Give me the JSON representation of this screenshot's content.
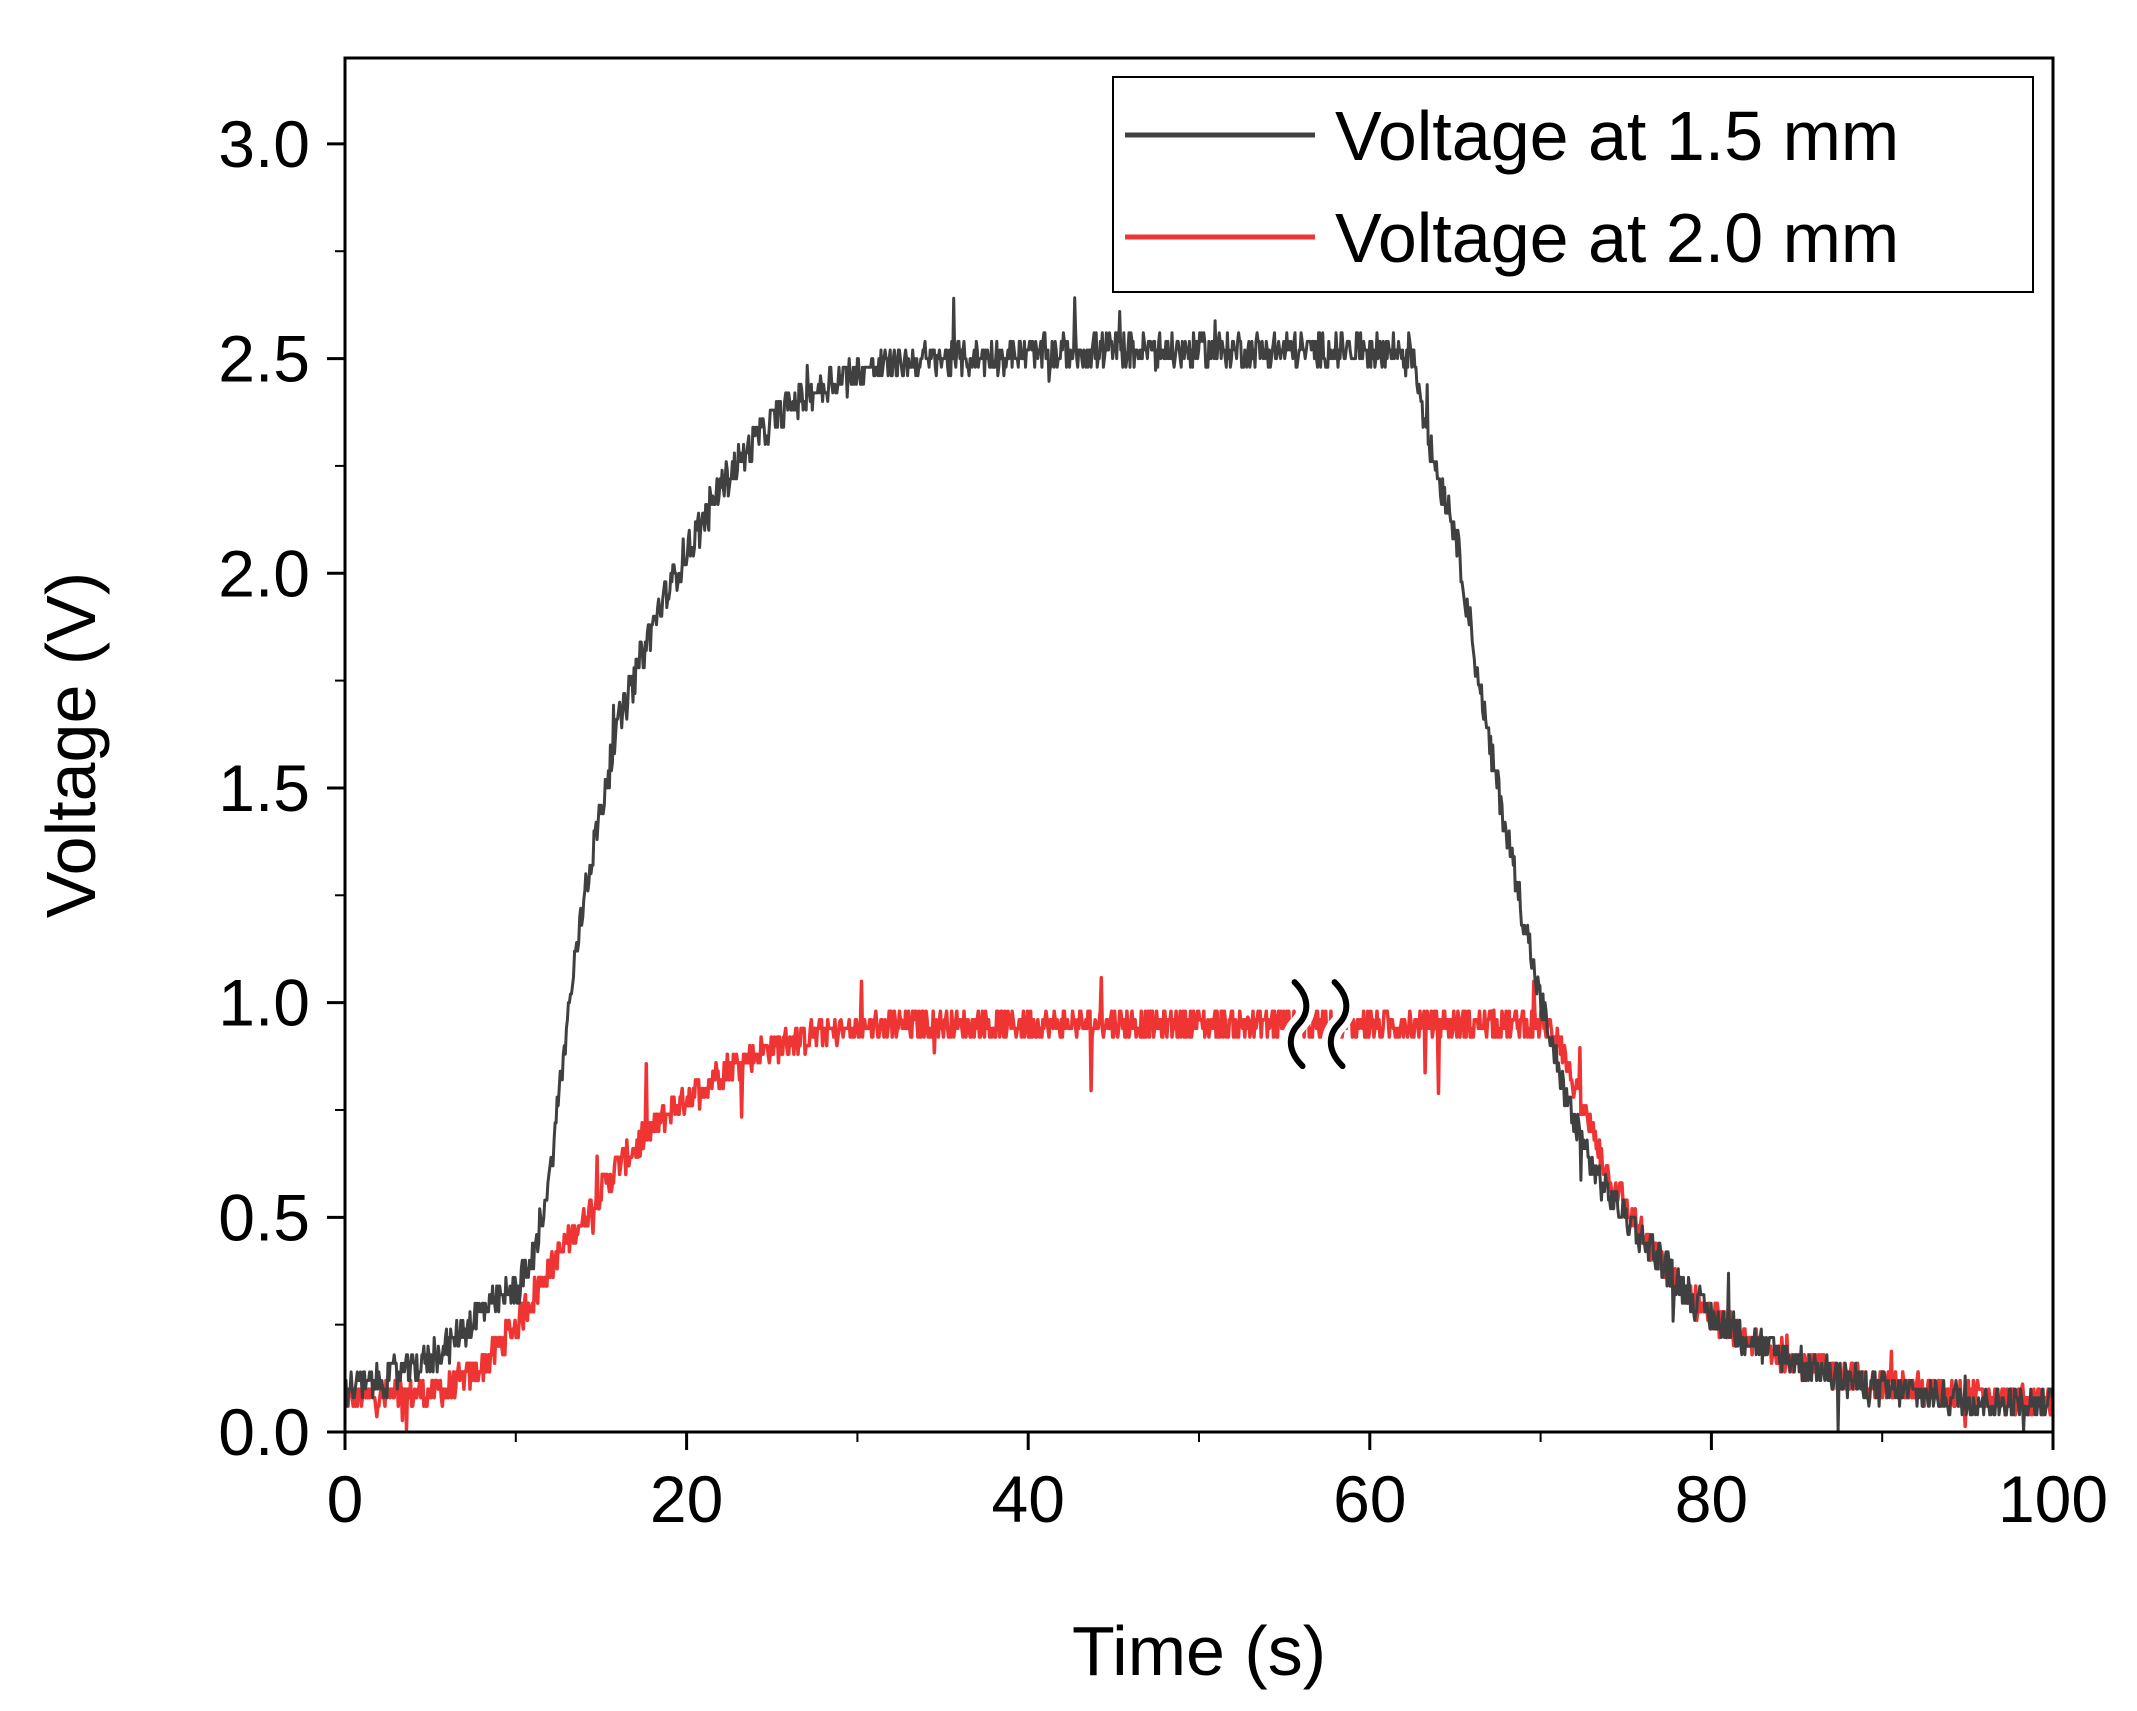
{
  "chart_data": {
    "type": "line",
    "title": "",
    "xlabel": "Time (s)",
    "ylabel": "Voltage (V)",
    "xlim": [
      0,
      100
    ],
    "ylim": [
      0,
      3.2
    ],
    "xticks": [
      0,
      20,
      40,
      60,
      80,
      100
    ],
    "xtick_labels": [
      "0",
      "20",
      "40",
      "60",
      "80",
      "100"
    ],
    "yticks": [
      0,
      0.5,
      1.0,
      1.5,
      2.0,
      2.5,
      3.0
    ],
    "ytick_labels": [
      "0.0",
      "0.5",
      "1.0",
      "1.5",
      "2.0",
      "2.5",
      "3.0"
    ],
    "grid": false,
    "legend_position": "top-right",
    "annotations": [
      {
        "type": "axis-break-mark",
        "x": 57,
        "y": 0.95
      }
    ],
    "series": [
      {
        "name": "Voltage at 1.5 mm",
        "color": "#404040",
        "noise": 0.04,
        "x": [
          0,
          2,
          4,
          6,
          8,
          10,
          11,
          12,
          13,
          14,
          15,
          16,
          18,
          20,
          22,
          24,
          26,
          28,
          30,
          32,
          35,
          40,
          45,
          50,
          55,
          60,
          62.5,
          63.5,
          65,
          66,
          67,
          68,
          69,
          70,
          71,
          72,
          73,
          74,
          76,
          78,
          80,
          82,
          84,
          86,
          88,
          90,
          92,
          94,
          96,
          98,
          100
        ],
        "y": [
          0.1,
          0.12,
          0.15,
          0.2,
          0.28,
          0.33,
          0.4,
          0.6,
          0.95,
          1.25,
          1.45,
          1.65,
          1.88,
          2.05,
          2.2,
          2.31,
          2.39,
          2.44,
          2.47,
          2.49,
          2.5,
          2.51,
          2.52,
          2.52,
          2.52,
          2.52,
          2.52,
          2.3,
          2.1,
          1.85,
          1.6,
          1.4,
          1.2,
          1.0,
          0.85,
          0.72,
          0.62,
          0.55,
          0.45,
          0.35,
          0.27,
          0.22,
          0.18,
          0.15,
          0.12,
          0.1,
          0.09,
          0.08,
          0.07,
          0.07,
          0.07
        ]
      },
      {
        "name": "Voltage at 2.0 mm",
        "color": "#ef3434",
        "noise": 0.035,
        "x": [
          0,
          2,
          4,
          6,
          8,
          10,
          12,
          14,
          16,
          18,
          20,
          22,
          24,
          26,
          28,
          30,
          35,
          40,
          45,
          50,
          55,
          60,
          65,
          70,
          71,
          72,
          74,
          76,
          78,
          80,
          82,
          84,
          86,
          88,
          90,
          92,
          94,
          96,
          98,
          100
        ],
        "y": [
          0.08,
          0.08,
          0.09,
          0.1,
          0.15,
          0.25,
          0.38,
          0.5,
          0.62,
          0.71,
          0.78,
          0.84,
          0.88,
          0.91,
          0.93,
          0.94,
          0.95,
          0.95,
          0.95,
          0.95,
          0.95,
          0.95,
          0.95,
          0.95,
          0.93,
          0.8,
          0.6,
          0.45,
          0.34,
          0.27,
          0.22,
          0.18,
          0.15,
          0.13,
          0.11,
          0.1,
          0.09,
          0.08,
          0.07,
          0.07
        ]
      }
    ]
  }
}
